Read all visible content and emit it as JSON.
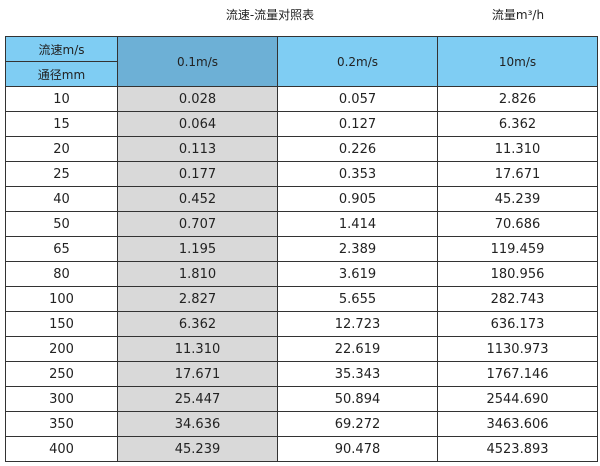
{
  "title": "流速-流量对照表",
  "unit": "流量m³/h",
  "header": {
    "velocity_label": "流速m/s",
    "diameter_label": "通径mm",
    "columns": [
      "0.1m/s",
      "0.2m/s",
      "10m/s"
    ]
  },
  "colors": {
    "header": "#7fcdf3",
    "selected_header": "#6db0d6",
    "shaded_column": "#d9d9d9"
  },
  "rows": [
    [
      "10",
      "0.028",
      "0.057",
      "2.826"
    ],
    [
      "15",
      "0.064",
      "0.127",
      "6.362"
    ],
    [
      "20",
      "0.113",
      "0.226",
      "11.310"
    ],
    [
      "25",
      "0.177",
      "0.353",
      "17.671"
    ],
    [
      "40",
      "0.452",
      "0.905",
      "45.239"
    ],
    [
      "50",
      "0.707",
      "1.414",
      "70.686"
    ],
    [
      "65",
      "1.195",
      "2.389",
      "119.459"
    ],
    [
      "80",
      "1.810",
      "3.619",
      "180.956"
    ],
    [
      "100",
      "2.827",
      "5.655",
      "282.743"
    ],
    [
      "150",
      "6.362",
      "12.723",
      "636.173"
    ],
    [
      "200",
      "11.310",
      "22.619",
      "1130.973"
    ],
    [
      "250",
      "17.671",
      "35.343",
      "1767.146"
    ],
    [
      "300",
      "25.447",
      "50.894",
      "2544.690"
    ],
    [
      "350",
      "34.636",
      "69.272",
      "3463.606"
    ],
    [
      "400",
      "45.239",
      "90.478",
      "4523.893"
    ]
  ]
}
